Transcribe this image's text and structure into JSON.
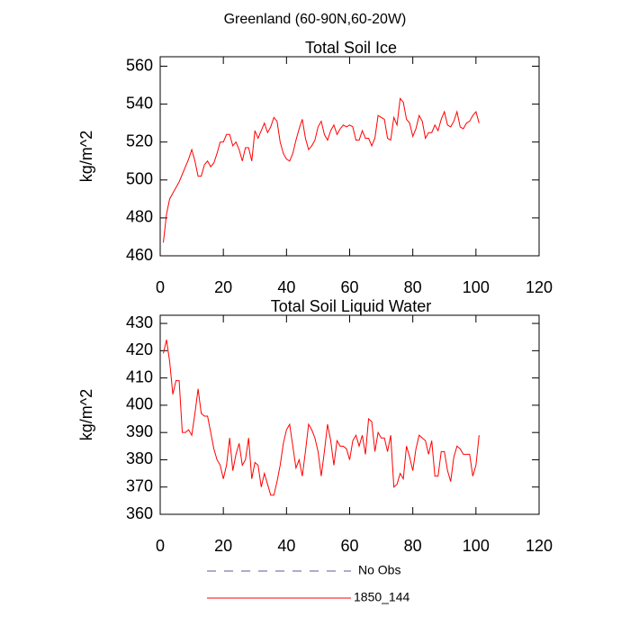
{
  "title": "Greenland (60-90N,60-20W)",
  "legend": [
    {
      "name": "No Obs",
      "color": "#5a5a9a",
      "dash": true
    },
    {
      "name": "1850_144",
      "color": "#ff0000",
      "dash": false
    }
  ],
  "chart_data": [
    {
      "type": "line",
      "title": "Total Soil Ice",
      "y_label": "kg/m^2",
      "xlim": [
        0,
        120
      ],
      "xticks": [
        0,
        20,
        40,
        60,
        80,
        100,
        120
      ],
      "ylim": [
        460,
        565
      ],
      "yticks": [
        460,
        480,
        500,
        520,
        540,
        560
      ],
      "x": [
        1,
        2,
        3,
        4,
        5,
        6,
        7,
        8,
        9,
        10,
        11,
        12,
        13,
        14,
        15,
        16,
        17,
        18,
        19,
        20,
        21,
        22,
        23,
        24,
        25,
        26,
        27,
        28,
        29,
        30,
        31,
        32,
        33,
        34,
        35,
        36,
        37,
        38,
        39,
        40,
        41,
        42,
        43,
        44,
        45,
        46,
        47,
        48,
        49,
        50,
        51,
        52,
        53,
        54,
        55,
        56,
        57,
        58,
        59,
        60,
        61,
        62,
        63,
        64,
        65,
        66,
        67,
        68,
        69,
        70,
        71,
        72,
        73,
        74,
        75,
        76,
        77,
        78,
        79,
        80,
        81,
        82,
        83,
        84,
        85,
        86,
        87,
        88,
        89,
        90,
        91,
        92,
        93,
        94,
        95,
        96,
        97,
        98,
        99,
        100,
        101
      ],
      "series": [
        {
          "color": "#ff0000",
          "values": [
            467,
            482,
            490,
            493,
            496,
            499,
            503,
            507,
            511,
            516,
            510,
            502,
            502,
            508,
            510,
            507,
            509,
            514,
            520,
            520,
            524,
            524,
            518,
            520,
            516,
            510,
            517,
            517,
            510,
            526,
            522,
            526,
            530,
            525,
            528,
            533,
            531,
            520,
            514,
            511,
            510,
            514,
            521,
            527,
            532,
            522,
            516,
            518,
            521,
            528,
            531,
            524,
            521,
            526,
            529,
            524,
            527,
            529,
            528,
            529,
            528,
            521,
            521,
            526,
            522,
            522,
            518,
            522,
            534,
            533,
            532,
            522,
            521,
            533,
            529,
            543,
            541,
            532,
            530,
            523,
            527,
            534,
            531,
            522,
            525,
            525,
            529,
            526,
            532,
            536,
            529,
            528,
            531,
            536,
            528,
            527,
            530,
            531,
            534,
            536,
            530
          ]
        }
      ]
    },
    {
      "type": "line",
      "title": "Total Soil Liquid Water",
      "y_label": "kg/m^2",
      "xlim": [
        0,
        120
      ],
      "xticks": [
        0,
        20,
        40,
        60,
        80,
        100,
        120
      ],
      "ylim": [
        360,
        433
      ],
      "yticks": [
        360,
        370,
        380,
        390,
        400,
        410,
        420,
        430
      ],
      "x": [
        1,
        2,
        3,
        4,
        5,
        6,
        7,
        8,
        9,
        10,
        11,
        12,
        13,
        14,
        15,
        16,
        17,
        18,
        19,
        20,
        21,
        22,
        23,
        24,
        25,
        26,
        27,
        28,
        29,
        30,
        31,
        32,
        33,
        34,
        35,
        36,
        37,
        38,
        39,
        40,
        41,
        42,
        43,
        44,
        45,
        46,
        47,
        48,
        49,
        50,
        51,
        52,
        53,
        54,
        55,
        56,
        57,
        58,
        59,
        60,
        61,
        62,
        63,
        64,
        65,
        66,
        67,
        68,
        69,
        70,
        71,
        72,
        73,
        74,
        75,
        76,
        77,
        78,
        79,
        80,
        81,
        82,
        83,
        84,
        85,
        86,
        87,
        88,
        89,
        90,
        91,
        92,
        93,
        94,
        95,
        96,
        97,
        98,
        99,
        100,
        101
      ],
      "series": [
        {
          "color": "#ff0000",
          "values": [
            419,
            424,
            416,
            404,
            409,
            409,
            390,
            390,
            391,
            389,
            397,
            406,
            397,
            396,
            396,
            390,
            384,
            380,
            378,
            373,
            378,
            388,
            376,
            382,
            386,
            378,
            380,
            388,
            373,
            379,
            378,
            370,
            375,
            371,
            367,
            367,
            372,
            378,
            386,
            391,
            393,
            385,
            377,
            380,
            374,
            383,
            393,
            391,
            388,
            383,
            374,
            383,
            393,
            387,
            378,
            387,
            385,
            385,
            384,
            380,
            387,
            389,
            385,
            389,
            382,
            395,
            394,
            383,
            390,
            388,
            388,
            383,
            389,
            370,
            371,
            375,
            373,
            385,
            381,
            376,
            384,
            389,
            388,
            387,
            382,
            387,
            374,
            374,
            383,
            383,
            376,
            372,
            381,
            385,
            384,
            382,
            382,
            382,
            374,
            378,
            389
          ]
        }
      ]
    }
  ]
}
